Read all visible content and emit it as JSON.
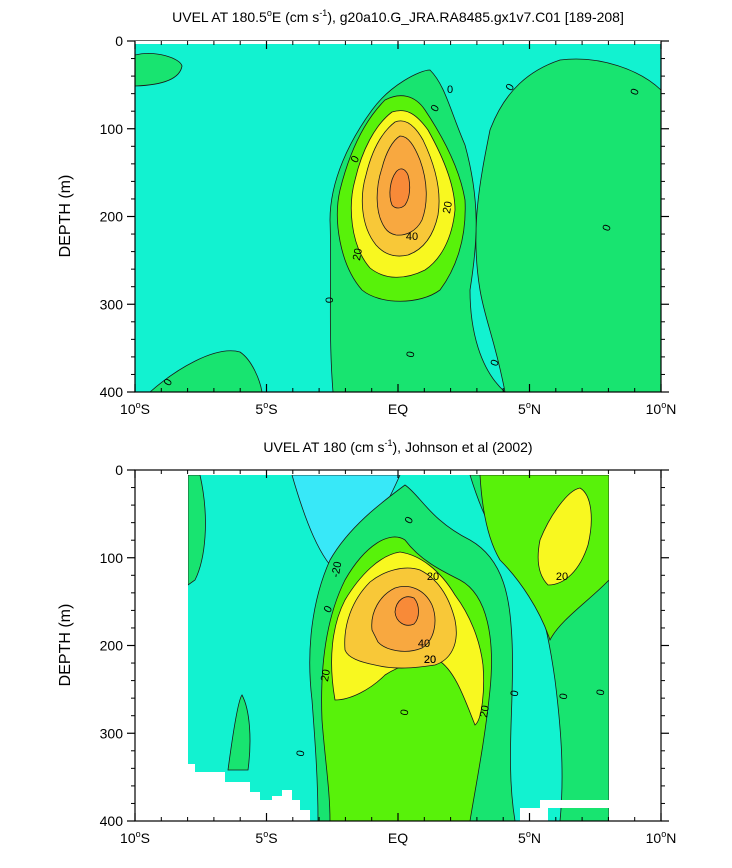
{
  "chart_data": [
    {
      "type": "contour",
      "title_main": "UVEL AT 180.5",
      "title_deg": "o",
      "title_unit_open": "E (cm s",
      "title_exp": "-1",
      "title_rest": "), g20a10.G_JRA.RA8485.gx1v7.C01 [189-208]",
      "ylabel": "DEPTH (m)",
      "xlabel": "",
      "xlim": [
        -10,
        10
      ],
      "ylim": [
        400,
        0
      ],
      "xticks": [
        {
          "value": -10,
          "num": "10",
          "deg": "o",
          "hem": "S"
        },
        {
          "value": -5,
          "num": "5",
          "deg": "o",
          "hem": "S"
        },
        {
          "value": 0,
          "num": "EQ",
          "deg": "",
          "hem": ""
        },
        {
          "value": 5,
          "num": "5",
          "deg": "o",
          "hem": "N"
        },
        {
          "value": 10,
          "num": "10",
          "deg": "o",
          "hem": "N"
        }
      ],
      "yticks": [
        "0",
        "100",
        "200",
        "300",
        "400"
      ],
      "contour_labels": [
        "0",
        "0",
        "0",
        "0",
        "0",
        "0",
        "0",
        "0",
        "0",
        "0",
        "20",
        "20",
        "40"
      ],
      "core_max_cm_s": 70,
      "core_location": {
        "lon": 0,
        "depth": 170
      }
    },
    {
      "type": "contour",
      "title_main": "UVEL AT 180 (cm s",
      "title_exp": "-1",
      "title_rest": "), Johnson et al (2002)",
      "ylabel": "DEPTH (m)",
      "xlabel": "",
      "xlim": [
        -10,
        10
      ],
      "ylim": [
        400,
        0
      ],
      "xticks": [
        {
          "value": -10,
          "num": "10",
          "deg": "o",
          "hem": "S"
        },
        {
          "value": -5,
          "num": "5",
          "deg": "o",
          "hem": "S"
        },
        {
          "value": 0,
          "num": "EQ",
          "deg": "",
          "hem": ""
        },
        {
          "value": 5,
          "num": "5",
          "deg": "o",
          "hem": "N"
        },
        {
          "value": 10,
          "num": "10",
          "deg": "o",
          "hem": "N"
        }
      ],
      "yticks": [
        "0",
        "100",
        "200",
        "300",
        "400"
      ],
      "contour_labels": [
        "-20",
        "20",
        "20",
        "20",
        "20",
        "20",
        "40",
        "20",
        "0",
        "0",
        "0",
        "0",
        "0",
        "0",
        "0"
      ],
      "core_max_cm_s": 60,
      "core_location": {
        "lon": 0.5,
        "depth": 165
      }
    }
  ],
  "colors": {
    "neg_20": "#38e8f8",
    "neg_0": "#12f2d0",
    "pos_0": "#18e470",
    "pos_20": "#58f20a",
    "pos_40": "#f8f820",
    "pos_60": "#f8c838",
    "pos_80": "#f8a840",
    "pos_100": "#f88a38"
  }
}
